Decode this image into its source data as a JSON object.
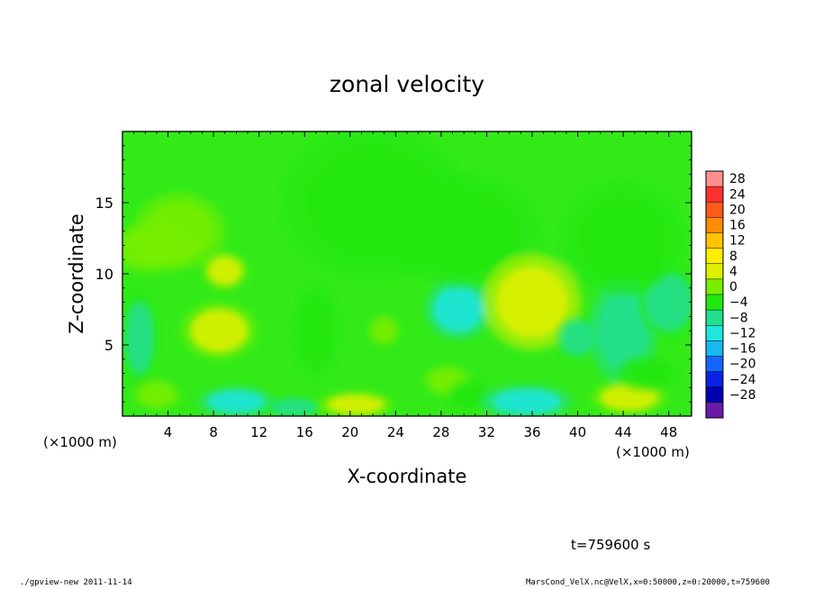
{
  "chart_data": {
    "type": "heatmap",
    "title": "zonal velocity",
    "xlabel": "X-coordinate",
    "ylabel": "Z-coordinate",
    "x_unit_label": "(×1000 m)",
    "x_unit_label_right": "(×1000 m)",
    "xlim": [
      0,
      50
    ],
    "ylim": [
      0,
      20
    ],
    "x_ticks": [
      4,
      8,
      12,
      16,
      20,
      24,
      28,
      32,
      36,
      40,
      44,
      48
    ],
    "y_ticks": [
      5,
      10,
      15
    ],
    "colorbar": {
      "levels": [
        28,
        24,
        20,
        16,
        12,
        8,
        4,
        0,
        -4,
        -8,
        -12,
        -16,
        -20,
        -24,
        -28
      ],
      "labels": [
        "28",
        "24",
        "20",
        "16",
        "12",
        "8",
        "4",
        "0",
        "−4",
        "−8",
        "−12",
        "−16",
        "−20",
        "−24",
        "−28"
      ],
      "colors": [
        "#ff8f8f",
        "#ff3030",
        "#ff5a1a",
        "#ff8c00",
        "#ffc400",
        "#ffee00",
        "#ddf000",
        "#77ee00",
        "#22e810",
        "#22e090",
        "#20e6dc",
        "#18b8f0",
        "#1466ff",
        "#0a22e6",
        "#0000b0",
        "#6a1aa8"
      ]
    },
    "features": [
      {
        "x": 1.5,
        "z": 5.5,
        "sx": 1.2,
        "sz": 2.5,
        "value": -7
      },
      {
        "x": 2.5,
        "z": 11.8,
        "sx": 2.8,
        "sz": 1.3,
        "value": 2.5
      },
      {
        "x": 5,
        "z": 13,
        "sx": 3,
        "sz": 2,
        "value": 1.5
      },
      {
        "x": 9,
        "z": 10.2,
        "sx": 1.5,
        "sz": 1,
        "value": 5
      },
      {
        "x": 8.5,
        "z": 6,
        "sx": 2.5,
        "sz": 1.5,
        "value": 6.5
      },
      {
        "x": 3,
        "z": 1.5,
        "sx": 1.5,
        "sz": 0.8,
        "value": 3
      },
      {
        "x": 10,
        "z": 1,
        "sx": 2.5,
        "sz": 0.8,
        "value": -9
      },
      {
        "x": 15,
        "z": 0.6,
        "sx": 2,
        "sz": 0.6,
        "value": -6
      },
      {
        "x": 17,
        "z": 6,
        "sx": 1.5,
        "sz": 2.5,
        "value": -3
      },
      {
        "x": 20.5,
        "z": 0.8,
        "sx": 2.5,
        "sz": 0.7,
        "value": 5
      },
      {
        "x": 23,
        "z": 6,
        "sx": 1,
        "sz": 0.8,
        "value": 2.5
      },
      {
        "x": 22,
        "z": 15,
        "sx": 6,
        "sz": 4,
        "value": -2
      },
      {
        "x": 28.5,
        "z": 2.5,
        "sx": 1.5,
        "sz": 0.8,
        "value": 2
      },
      {
        "x": 29.5,
        "z": 7.5,
        "sx": 2.2,
        "sz": 1.6,
        "value": -9.5
      },
      {
        "x": 30,
        "z": 13,
        "sx": 5,
        "sz": 3,
        "value": -4
      },
      {
        "x": 30.5,
        "z": 1.5,
        "sx": 1.5,
        "sz": 0.8,
        "value": -4
      },
      {
        "x": 36,
        "z": 8,
        "sx": 3.2,
        "sz": 2.5,
        "value": 7.5
      },
      {
        "x": 35.5,
        "z": 1,
        "sx": 3,
        "sz": 0.9,
        "value": -10
      },
      {
        "x": 40,
        "z": 5.5,
        "sx": 1.5,
        "sz": 1.2,
        "value": -5
      },
      {
        "x": 44,
        "z": 6,
        "sx": 2.2,
        "sz": 2.8,
        "value": -8
      },
      {
        "x": 48,
        "z": 8,
        "sx": 2,
        "sz": 2,
        "value": -7
      },
      {
        "x": 44.5,
        "z": 1.3,
        "sx": 2.5,
        "sz": 0.9,
        "value": 5
      },
      {
        "x": 46,
        "z": 3,
        "sx": 2,
        "sz": 1,
        "value": -3
      },
      {
        "x": 44,
        "z": 12.5,
        "sx": 4,
        "sz": 3,
        "value": -2
      }
    ]
  },
  "annotation_time": "t=759600 s",
  "footer": {
    "left": "./gpview-new  2011-11-14",
    "right": "MarsCond_VelX.nc@VelX,x=0:50000,z=0:20000,t=759600"
  }
}
